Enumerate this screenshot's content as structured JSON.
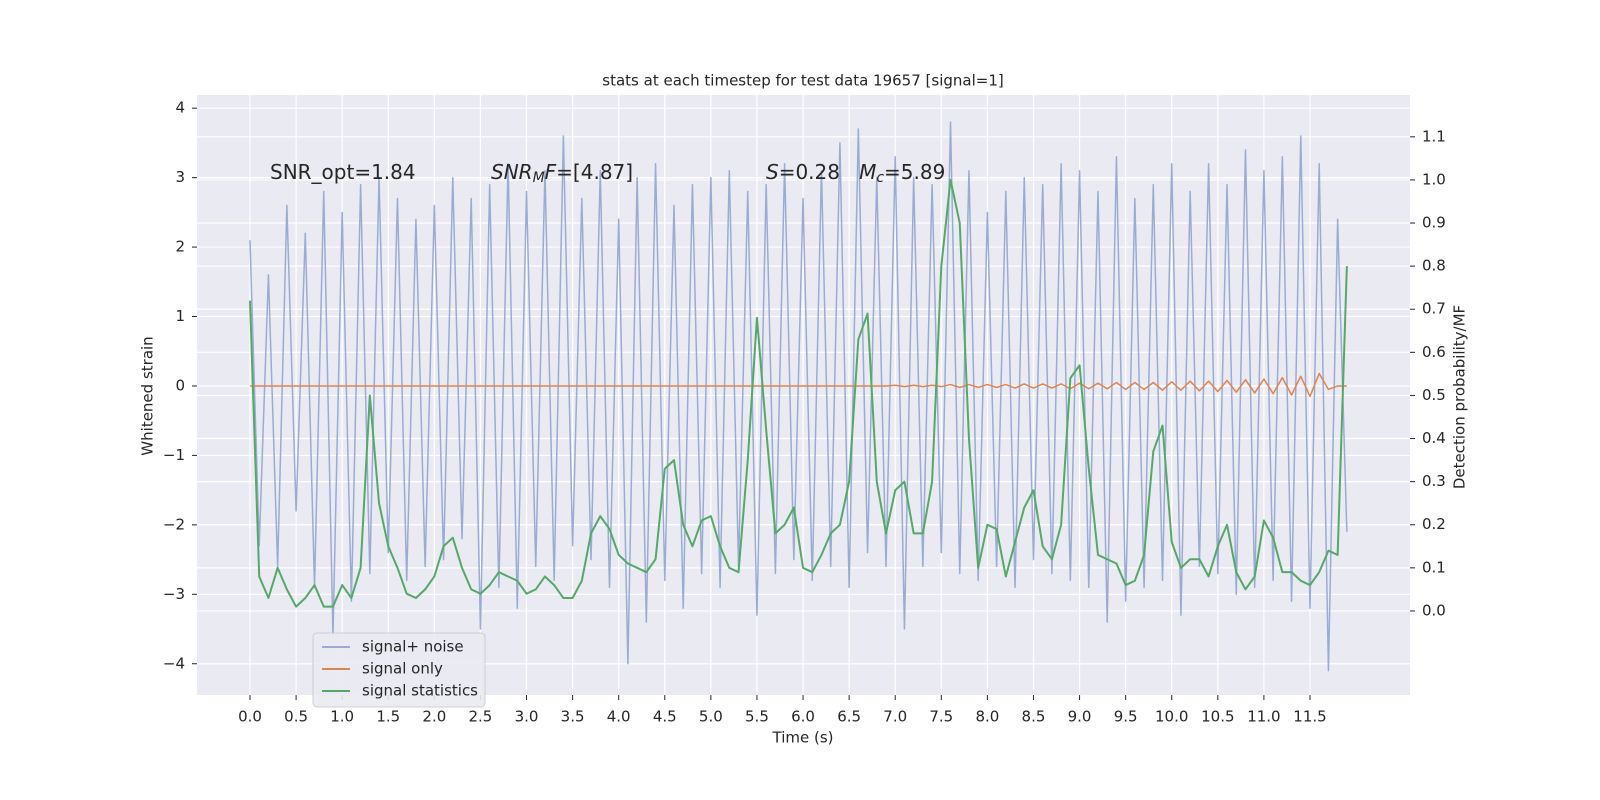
{
  "chart_data": {
    "type": "line",
    "title": "stats at each timestep for test data 19657 [signal=1]",
    "xlabel": "Time (s)",
    "ylabel": "Whitened strain",
    "y2label": "Detection probability/MF",
    "annotations": [
      {
        "parts": [
          {
            "text": "SNR_opt=1.84"
          }
        ]
      },
      {
        "parts": [
          {
            "text": "SNR",
            "style": "italic"
          },
          {
            "text": "M",
            "style": "sub"
          },
          {
            "text": "F",
            "style": "italic"
          },
          {
            "text": "=[4.87]"
          }
        ]
      },
      {
        "parts": [
          {
            "text": "S",
            "style": "italic"
          },
          {
            "text": "=0.28   "
          },
          {
            "text": "M",
            "style": "italic"
          },
          {
            "text": "c",
            "style": "sub"
          },
          {
            "text": "=5.89"
          }
        ]
      }
    ],
    "x": [
      0,
      0.1,
      0.2,
      0.3,
      0.4,
      0.5,
      0.6,
      0.7,
      0.8,
      0.9,
      1,
      1.1,
      1.2,
      1.3,
      1.4,
      1.5,
      1.6,
      1.7,
      1.8,
      1.9,
      2,
      2.1,
      2.2,
      2.3,
      2.4,
      2.5,
      2.6,
      2.7,
      2.8,
      2.9,
      3,
      3.1,
      3.2,
      3.3,
      3.4,
      3.5,
      3.6,
      3.7,
      3.8,
      3.9,
      4,
      4.1,
      4.2,
      4.3,
      4.4,
      4.5,
      4.6,
      4.7,
      4.8,
      4.9,
      5,
      5.1,
      5.2,
      5.3,
      5.4,
      5.5,
      5.6,
      5.7,
      5.8,
      5.9,
      6,
      6.1,
      6.2,
      6.3,
      6.4,
      6.5,
      6.6,
      6.7,
      6.8,
      6.9,
      7,
      7.1,
      7.2,
      7.3,
      7.4,
      7.5,
      7.6,
      7.7,
      7.8,
      7.9,
      8,
      8.1,
      8.2,
      8.3,
      8.4,
      8.5,
      8.6,
      8.7,
      8.8,
      8.9,
      9,
      9.1,
      9.2,
      9.3,
      9.4,
      9.5,
      9.6,
      9.7,
      9.8,
      9.9,
      10,
      10.1,
      10.2,
      10.3,
      10.4,
      10.5,
      10.6,
      10.7,
      10.8,
      10.9,
      11,
      11.1,
      11.2,
      11.3,
      11.4,
      11.5,
      11.6,
      11.7,
      11.8,
      11.9
    ],
    "series": [
      {
        "name": "signal+ noise",
        "color": "#9aacd2",
        "values": [
          2.1,
          -2.3,
          1.6,
          -2.6,
          2.6,
          -1.8,
          2.2,
          -2.9,
          2.8,
          -3.6,
          2.5,
          -3.1,
          2.9,
          -2.7,
          3.0,
          -2.4,
          2.7,
          -2.8,
          2.4,
          -2.6,
          2.6,
          -2.5,
          3.0,
          -2.2,
          2.7,
          -3.5,
          2.9,
          -2.9,
          3.2,
          -3.2,
          2.8,
          -2.6,
          3.1,
          -2.8,
          3.6,
          -2.3,
          2.7,
          -2.5,
          3.1,
          -2.9,
          2.4,
          -4.0,
          3.0,
          -3.4,
          3.2,
          -2.8,
          2.6,
          -3.2,
          2.9,
          -2.7,
          3.0,
          -2.9,
          3.1,
          -2.6,
          2.8,
          -3.3,
          2.9,
          -2.7,
          3.2,
          -2.5,
          2.7,
          -2.8,
          3.1,
          -2.6,
          3.5,
          -2.9,
          3.7,
          -2.4,
          3.0,
          -2.6,
          3.3,
          -3.5,
          3.0,
          -2.6,
          2.9,
          -2.4,
          3.8,
          -2.7,
          3.1,
          -2.8,
          2.5,
          -2.6,
          2.8,
          -2.9,
          3.0,
          -2.5,
          2.9,
          -2.7,
          3.2,
          -2.8,
          3.1,
          -2.9,
          2.8,
          -3.4,
          3.3,
          -3.1,
          2.7,
          -2.9,
          2.9,
          -2.8,
          3.2,
          -3.3,
          2.8,
          -2.6,
          3.2,
          -2.7,
          2.9,
          -3.0,
          3.4,
          -2.9,
          3.1,
          -2.8,
          3.3,
          -3.1,
          3.6,
          -3.2,
          3.2,
          -4.1,
          2.4,
          -2.1
        ]
      },
      {
        "name": "signal only",
        "color": "#dd8452",
        "values": [
          0,
          0,
          0,
          0,
          0,
          0,
          0,
          0,
          0,
          0,
          0,
          0,
          0,
          0,
          0,
          0,
          0,
          0,
          0,
          0,
          0,
          0,
          0,
          0,
          0,
          0,
          0,
          0,
          0,
          0,
          0,
          0,
          0,
          0,
          0,
          0,
          0,
          0,
          0,
          0,
          0,
          0,
          0,
          0,
          0,
          0,
          0,
          0,
          0,
          0,
          0,
          0,
          0,
          0,
          0,
          0,
          0,
          0,
          0,
          0,
          0,
          0,
          0,
          0,
          0,
          0,
          0,
          0,
          0,
          0,
          0.01,
          -0.01,
          0.01,
          -0.01,
          0.01,
          -0.01,
          0.02,
          -0.02,
          0.02,
          -0.02,
          0.02,
          -0.02,
          0.02,
          -0.03,
          0.03,
          -0.03,
          0.03,
          -0.03,
          0.03,
          -0.04,
          0.04,
          -0.04,
          0.04,
          -0.04,
          0.05,
          -0.05,
          0.05,
          -0.05,
          0.05,
          -0.06,
          0.06,
          -0.06,
          0.07,
          -0.07,
          0.07,
          -0.08,
          0.08,
          -0.09,
          0.09,
          -0.1,
          0.1,
          -0.11,
          0.12,
          -0.13,
          0.14,
          -0.15,
          0.18,
          -0.05,
          0,
          0
        ]
      },
      {
        "name": "signal statistics",
        "color": "#55a868",
        "axis": "y2",
        "values": [
          0.72,
          0.08,
          0.03,
          0.1,
          0.05,
          0.01,
          0.03,
          0.06,
          0.01,
          0.01,
          0.06,
          0.03,
          0.1,
          0.5,
          0.25,
          0.15,
          0.1,
          0.04,
          0.03,
          0.05,
          0.08,
          0.15,
          0.17,
          0.1,
          0.05,
          0.04,
          0.06,
          0.09,
          0.08,
          0.07,
          0.04,
          0.05,
          0.08,
          0.06,
          0.03,
          0.03,
          0.07,
          0.18,
          0.22,
          0.19,
          0.13,
          0.11,
          0.1,
          0.09,
          0.12,
          0.33,
          0.35,
          0.2,
          0.15,
          0.21,
          0.22,
          0.15,
          0.1,
          0.09,
          0.35,
          0.68,
          0.42,
          0.18,
          0.2,
          0.24,
          0.1,
          0.09,
          0.13,
          0.18,
          0.2,
          0.3,
          0.63,
          0.69,
          0.3,
          0.18,
          0.28,
          0.3,
          0.18,
          0.18,
          0.3,
          0.8,
          1.0,
          0.9,
          0.4,
          0.1,
          0.2,
          0.19,
          0.08,
          0.16,
          0.24,
          0.28,
          0.15,
          0.12,
          0.2,
          0.54,
          0.57,
          0.33,
          0.13,
          0.12,
          0.11,
          0.06,
          0.07,
          0.13,
          0.37,
          0.43,
          0.16,
          0.1,
          0.12,
          0.12,
          0.08,
          0.15,
          0.2,
          0.09,
          0.05,
          0.08,
          0.21,
          0.17,
          0.09,
          0.09,
          0.07,
          0.06,
          0.09,
          0.14,
          0.13,
          0.8
        ]
      }
    ],
    "xlim": [
      -0.575,
      12.585
    ],
    "xticks": [
      {
        "value": 0,
        "label": "0.0"
      },
      {
        "value": 0.5,
        "label": "0.5"
      },
      {
        "value": 1,
        "label": "1.0"
      },
      {
        "value": 1.5,
        "label": "1.5"
      },
      {
        "value": 2,
        "label": "2.0"
      },
      {
        "value": 2.5,
        "label": "2.5"
      },
      {
        "value": 3,
        "label": "3.0"
      },
      {
        "value": 3.5,
        "label": "3.5"
      },
      {
        "value": 4,
        "label": "4.0"
      },
      {
        "value": 4.5,
        "label": "4.5"
      },
      {
        "value": 5,
        "label": "5.0"
      },
      {
        "value": 5.5,
        "label": "5.5"
      },
      {
        "value": 6,
        "label": "6.0"
      },
      {
        "value": 6.5,
        "label": "6.5"
      },
      {
        "value": 7,
        "label": "7.0"
      },
      {
        "value": 7.5,
        "label": "7.5"
      },
      {
        "value": 8,
        "label": "8.0"
      },
      {
        "value": 8.5,
        "label": "8.5"
      },
      {
        "value": 9,
        "label": "9.0"
      },
      {
        "value": 9.5,
        "label": "9.5"
      },
      {
        "value": 10,
        "label": "10.0"
      },
      {
        "value": 10.5,
        "label": "10.5"
      },
      {
        "value": 11,
        "label": "11.0"
      },
      {
        "value": 11.5,
        "label": "11.5"
      }
    ],
    "ylim": [
      -4.45,
      4.19
    ],
    "yticks": [
      {
        "value": -4,
        "label": "−4"
      },
      {
        "value": -3,
        "label": "−3"
      },
      {
        "value": -2,
        "label": "−2"
      },
      {
        "value": -1,
        "label": "−1"
      },
      0,
      1,
      2,
      3,
      4
    ],
    "y2lim": [
      -0.195,
      1.197
    ],
    "y2ticks": [
      {
        "value": 0,
        "label": "0.0"
      },
      {
        "value": 0.1,
        "label": "0.1"
      },
      {
        "value": 0.2,
        "label": "0.2"
      },
      {
        "value": 0.3,
        "label": "0.3"
      },
      {
        "value": 0.4,
        "label": "0.4"
      },
      {
        "value": 0.5,
        "label": "0.5"
      },
      {
        "value": 0.6,
        "label": "0.6"
      },
      {
        "value": 0.7,
        "label": "0.7"
      },
      {
        "value": 0.8,
        "label": "0.8"
      },
      {
        "value": 0.9,
        "label": "0.9"
      },
      {
        "value": 1,
        "label": "1.0"
      },
      {
        "value": 1.1,
        "label": "1.1"
      }
    ],
    "grid": true,
    "legend": "lower left",
    "background": "#eaeaf2"
  }
}
